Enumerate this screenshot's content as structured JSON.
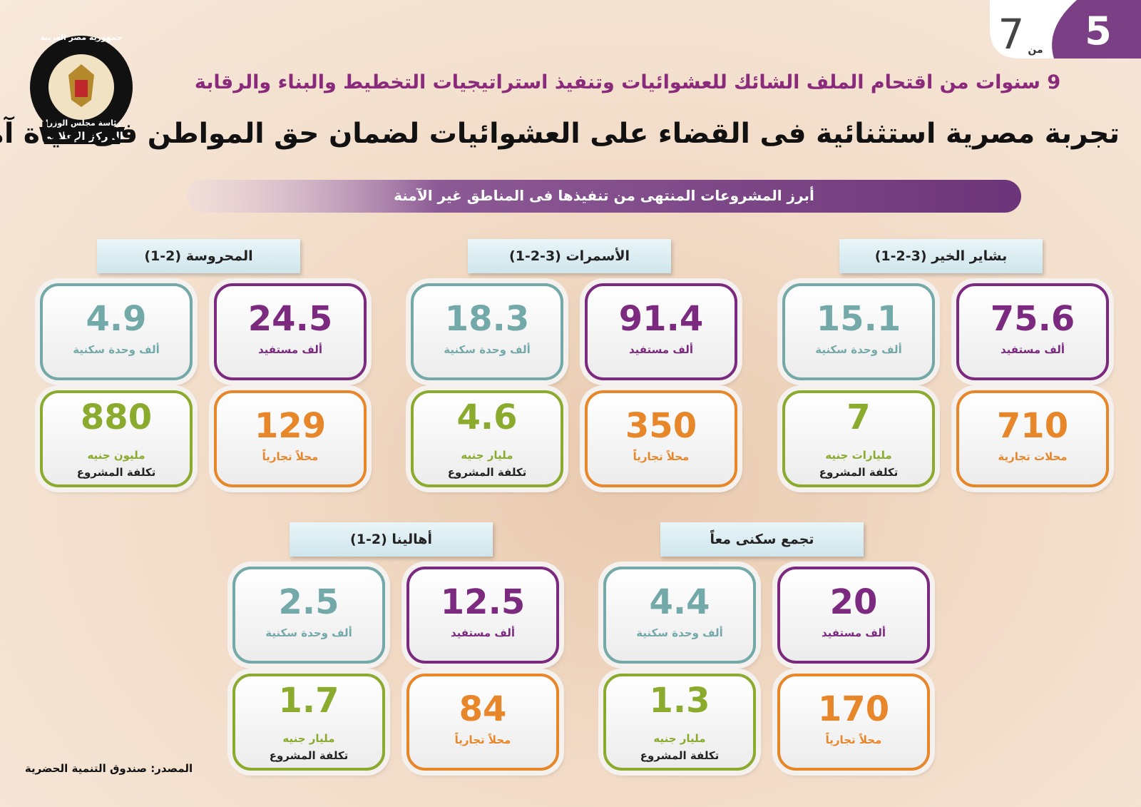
{
  "page": {
    "current": "5",
    "of": "من",
    "total": "7"
  },
  "logo": {
    "top": "جمهورية مصر العربية",
    "middle": "رئاسة مجلس الوزراء",
    "bottom": "المركز الإعلامي"
  },
  "header": {
    "kicker": "9 سنوات من اقتحام الملف الشائك للعشوائيات وتنفيذ استراتيجيات التخطيط والبناء والرقابة",
    "title": "تجربة مصرية استثنائية فى القضاء على العشوائيات لضمان حق المواطن فى حياة آمنة وكريمة",
    "subtitle": "أبرز المشروعات المنتهى من تنفيذها فى المناطق غير الآمنة"
  },
  "projects": [
    {
      "name": "بشاير الخير (3-2-1)",
      "beneficiaries": {
        "value": "75.6",
        "label": "ألف مستفيد"
      },
      "units": {
        "value": "15.1",
        "label": "ألف وحدة سكنية"
      },
      "shops": {
        "value": "710",
        "label": "محلات تجارية"
      },
      "cost": {
        "value": "7",
        "unit": "مليارات جنيه",
        "label": "تكلفة المشروع"
      }
    },
    {
      "name": "الأسمرات (3-2-1)",
      "beneficiaries": {
        "value": "91.4",
        "label": "ألف مستفيد"
      },
      "units": {
        "value": "18.3",
        "label": "ألف وحدة سكنية"
      },
      "shops": {
        "value": "350",
        "label": "محلاً تجارياً"
      },
      "cost": {
        "value": "4.6",
        "unit": "مليار جنيه",
        "label": "تكلفة المشروع"
      }
    },
    {
      "name": "المحروسة (2-1)",
      "beneficiaries": {
        "value": "24.5",
        "label": "ألف مستفيد"
      },
      "units": {
        "value": "4.9",
        "label": "ألف وحدة سكنية"
      },
      "shops": {
        "value": "129",
        "label": "محلاً تجارياً"
      },
      "cost": {
        "value": "880",
        "unit": "مليون جنيه",
        "label": "تكلفة المشروع"
      }
    },
    {
      "name": "تجمع سكنى معاً",
      "beneficiaries": {
        "value": "20",
        "label": "ألف مستفيد"
      },
      "units": {
        "value": "4.4",
        "label": "ألف وحدة سكنية"
      },
      "shops": {
        "value": "170",
        "label": "محلاً تجارياً"
      },
      "cost": {
        "value": "1.3",
        "unit": "مليار جنيه",
        "label": "تكلفة المشروع"
      }
    },
    {
      "name": "أهالينا (2-1)",
      "beneficiaries": {
        "value": "12.5",
        "label": "ألف مستفيد"
      },
      "units": {
        "value": "2.5",
        "label": "ألف وحدة سكنية"
      },
      "shops": {
        "value": "84",
        "label": "محلاً تجارياً"
      },
      "cost": {
        "value": "1.7",
        "unit": "مليار جنيه",
        "label": "تكلفة المشروع"
      }
    }
  ],
  "source": "المصدر: صندوق التنمية الحضرية"
}
